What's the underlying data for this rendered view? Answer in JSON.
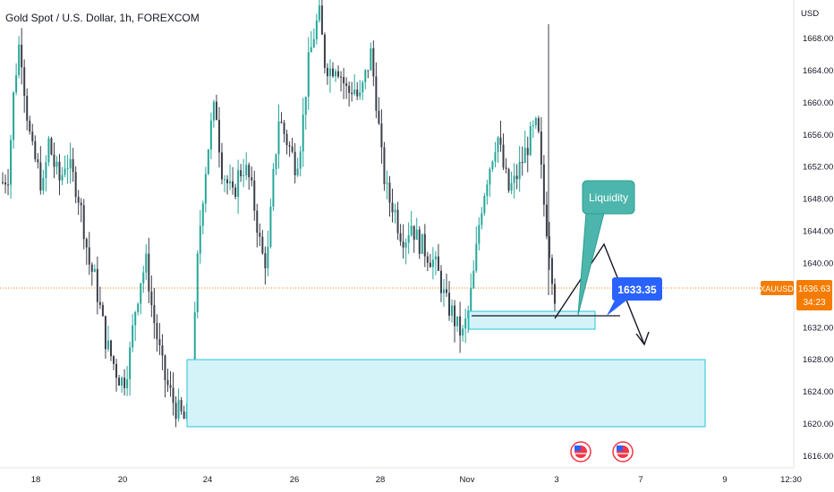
{
  "title": "Gold Spot / U.S. Dollar, 1h, FOREXCOM",
  "currency": "USD",
  "symbol_tag": "XAUUSD",
  "last_price": "1636.63",
  "countdown": "34:23",
  "callout_price": "1633.35",
  "annotation": "Liquidity",
  "flag_icon": "us-flag-icon",
  "colors": {
    "up": "#26a69a",
    "down": "#3b3f49",
    "zone_fill": "#d4f3f8",
    "zone_stroke": "#26c6da",
    "price_tag": "#f57c00",
    "callout": "#2962ff",
    "liquidity_bubble": "#4db6ac"
  },
  "chart_data": {
    "type": "candlestick",
    "y_ticks": [
      "1668.00",
      "1664.00",
      "1660.00",
      "1656.00",
      "1652.00",
      "1648.00",
      "1644.00",
      "1640.00",
      "1632.00",
      "1628.00",
      "1624.00",
      "1620.00",
      "1616.00"
    ],
    "x_ticks": [
      "18",
      "20",
      "24",
      "26",
      "28",
      "Nov",
      "3",
      "7",
      "9",
      "12:30"
    ],
    "ylim": [
      1615,
      1671
    ],
    "series": [
      {
        "values_close": [
          1650,
          1651,
          1662,
          1668,
          1660,
          1654,
          1652,
          1649,
          1655,
          1652,
          1650,
          1653,
          1651,
          1649,
          1645,
          1640,
          1638,
          1634,
          1630,
          1628,
          1626,
          1625,
          1628,
          1634,
          1638,
          1640,
          1634,
          1630,
          1626,
          1624,
          1622,
          1621,
          1620,
          1626,
          1642,
          1650,
          1656,
          1660,
          1652,
          1650,
          1648,
          1651,
          1652,
          1650,
          1646,
          1641,
          1640,
          1650,
          1658,
          1656,
          1654,
          1652,
          1656,
          1664,
          1668,
          1671,
          1665,
          1664,
          1665,
          1663,
          1661,
          1662,
          1660,
          1663,
          1666,
          1660,
          1652,
          1648,
          1647,
          1644,
          1643,
          1645,
          1643,
          1642,
          1641,
          1640,
          1638,
          1635,
          1634,
          1632,
          1631,
          1634,
          1639,
          1646,
          1650,
          1653,
          1656,
          1652,
          1649,
          1650,
          1652,
          1654,
          1656,
          1657,
          1648,
          1642,
          1636
        ]
      }
    ]
  }
}
